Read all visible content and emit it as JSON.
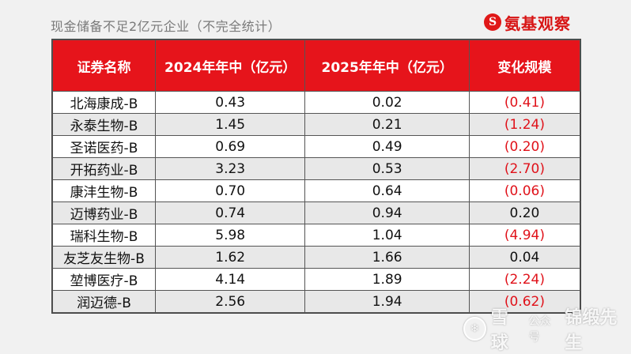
{
  "subtitle": "现金储备不足2亿元企业（不完全统计）",
  "brand": {
    "name": "氨基观察",
    "mark": "S"
  },
  "table": {
    "headers": [
      "证券名称",
      "2024年年中（亿元）",
      "2025年年中（亿元）",
      "变化规模"
    ],
    "rows": [
      [
        "北海康成-B",
        "0.43",
        "0.02",
        "(0.41)"
      ],
      [
        "永泰生物-B",
        "1.45",
        "0.21",
        "(1.24)"
      ],
      [
        "圣诺医药-B",
        "0.69",
        "0.49",
        "(0.20)"
      ],
      [
        "开拓药业-B",
        "3.23",
        "0.53",
        "(2.70)"
      ],
      [
        "康沣生物-B",
        "0.70",
        "0.64",
        "(0.06)"
      ],
      [
        "迈博药业-B",
        "0.74",
        "0.94",
        "0.20"
      ],
      [
        "瑞科生物-B",
        "5.98",
        "1.04",
        "(4.94)"
      ],
      [
        "友芝友生物-B",
        "1.62",
        "1.66",
        "0.04"
      ],
      [
        "堃博医疗-B",
        "4.14",
        "1.89",
        "(2.24)"
      ],
      [
        "润迈德-B",
        "2.56",
        "1.94",
        "(0.62)"
      ]
    ]
  },
  "colors": {
    "header_bg": "#e6141b",
    "negative": "#e0121a"
  },
  "watermark": {
    "icon": "snowball-icon",
    "site": "雪球",
    "small": "公众号",
    "author": "锦缎先生"
  }
}
